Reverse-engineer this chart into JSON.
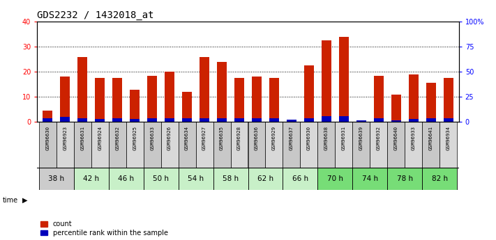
{
  "title": "GDS2232 / 1432018_at",
  "samples": [
    "GSM96630",
    "GSM96923",
    "GSM96631",
    "GSM96924",
    "GSM96632",
    "GSM96925",
    "GSM96633",
    "GSM96926",
    "GSM96634",
    "GSM96927",
    "GSM96635",
    "GSM96928",
    "GSM96636",
    "GSM96929",
    "GSM96637",
    "GSM96930",
    "GSM96638",
    "GSM96931",
    "GSM96639",
    "GSM96932",
    "GSM96640",
    "GSM96933",
    "GSM96641",
    "GSM96934"
  ],
  "time_groups": [
    {
      "label": "38 h",
      "color": "#cccccc",
      "start": 0,
      "end": 1
    },
    {
      "label": "42 h",
      "color": "#c8f0c8",
      "start": 2,
      "end": 3
    },
    {
      "label": "46 h",
      "color": "#c8f0c8",
      "start": 4,
      "end": 5
    },
    {
      "label": "50 h",
      "color": "#c8f0c8",
      "start": 6,
      "end": 7
    },
    {
      "label": "54 h",
      "color": "#c8f0c8",
      "start": 8,
      "end": 9
    },
    {
      "label": "58 h",
      "color": "#c8f0c8",
      "start": 10,
      "end": 11
    },
    {
      "label": "62 h",
      "color": "#c8f0c8",
      "start": 12,
      "end": 13
    },
    {
      "label": "66 h",
      "color": "#c8f0c8",
      "start": 14,
      "end": 15
    },
    {
      "label": "70 h",
      "color": "#77dd77",
      "start": 16,
      "end": 17
    },
    {
      "label": "74 h",
      "color": "#77dd77",
      "start": 18,
      "end": 19
    },
    {
      "label": "78 h",
      "color": "#77dd77",
      "start": 20,
      "end": 21
    },
    {
      "label": "82 h",
      "color": "#77dd77",
      "start": 22,
      "end": 23
    }
  ],
  "count_values": [
    4.5,
    18.0,
    26.0,
    17.5,
    17.5,
    13.0,
    18.5,
    20.0,
    12.0,
    26.0,
    24.0,
    17.5,
    18.0,
    17.5,
    1.0,
    22.5,
    32.5,
    34.0,
    0.5,
    18.5,
    11.0,
    19.0,
    15.5,
    17.5
  ],
  "percentile_values_pct": [
    4.0,
    5.0,
    4.0,
    3.0,
    4.0,
    3.0,
    4.0,
    4.0,
    4.0,
    4.0,
    4.0,
    4.0,
    4.0,
    4.0,
    2.5,
    4.0,
    6.0,
    6.0,
    1.5,
    4.0,
    1.5,
    3.0,
    4.0,
    4.0
  ],
  "ylim_left": [
    0,
    40
  ],
  "ylim_right": [
    0,
    100
  ],
  "yticks_left": [
    0,
    10,
    20,
    30,
    40
  ],
  "yticks_right": [
    0,
    25,
    50,
    75,
    100
  ],
  "ytick_labels_right": [
    "0",
    "25",
    "50",
    "75",
    "100%"
  ],
  "bar_color_red": "#cc2200",
  "bar_color_blue": "#0000bb",
  "bg_color": "#ffffff",
  "plot_bg": "#ffffff",
  "title_fontsize": 10,
  "tick_fontsize": 7,
  "legend_count": "count",
  "legend_percentile": "percentile rank within the sample",
  "sample_bg_odd": "#cccccc",
  "sample_bg_even": "#bbbbbb"
}
